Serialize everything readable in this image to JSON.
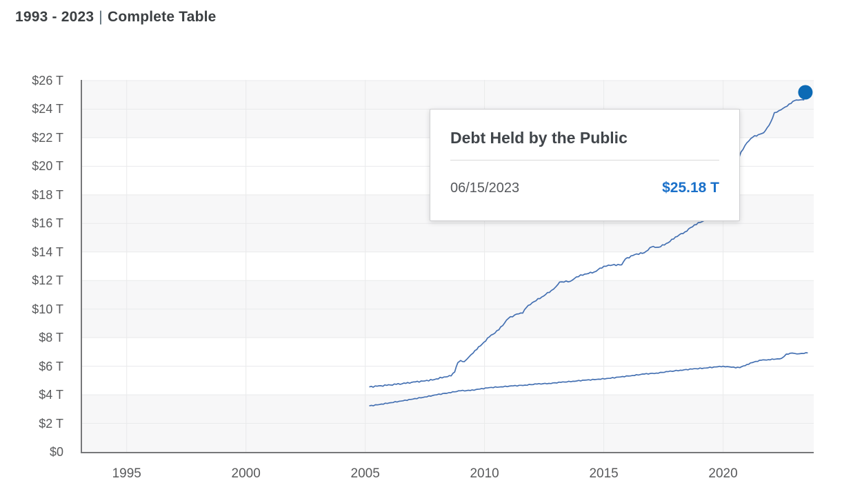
{
  "header": {
    "range": "1993 - 2023",
    "separator": "|",
    "title": "Complete Table"
  },
  "tooltip": {
    "title": "Debt Held by the Public",
    "date": "06/15/2023",
    "value": "$25.18 T",
    "value_color": "#1a70c9"
  },
  "chart_data": {
    "type": "line",
    "title": "1993 - 2023 | Complete Table",
    "xlabel": "",
    "ylabel": "",
    "x_axis": {
      "ticks": [
        1995,
        2000,
        2005,
        2010,
        2015,
        2020
      ],
      "range": [
        1993.1,
        2023.8
      ]
    },
    "y_axis": {
      "tick_labels": [
        "$0",
        "$2 T",
        "$4 T",
        "$6 T",
        "$8 T",
        "$10 T",
        "$12 T",
        "$14 T",
        "$16 T",
        "$18 T",
        "$20 T",
        "$22 T",
        "$24 T",
        "$26 T"
      ],
      "tick_values": [
        0,
        2,
        4,
        6,
        8,
        10,
        12,
        14,
        16,
        18,
        20,
        22,
        24,
        26
      ],
      "range": [
        0,
        26
      ],
      "unit": "$ trillions"
    },
    "grid": true,
    "band_ranges": [
      [
        26,
        22
      ],
      [
        18,
        14
      ],
      [
        12,
        8
      ],
      [
        4,
        0
      ]
    ],
    "legend_position": "none",
    "series": [
      {
        "name": "Debt Held by the Public",
        "points": [
          [
            2005.17,
            4.55
          ],
          [
            2005.5,
            4.6
          ],
          [
            2005.9,
            4.66
          ],
          [
            2006.3,
            4.73
          ],
          [
            2006.7,
            4.8
          ],
          [
            2007.1,
            4.9
          ],
          [
            2007.5,
            4.97
          ],
          [
            2007.9,
            5.07
          ],
          [
            2008.3,
            5.25
          ],
          [
            2008.6,
            5.32
          ],
          [
            2008.75,
            5.6
          ],
          [
            2008.88,
            6.25
          ],
          [
            2009.0,
            6.4
          ],
          [
            2009.15,
            6.32
          ],
          [
            2009.35,
            6.65
          ],
          [
            2009.6,
            7.1
          ],
          [
            2009.9,
            7.55
          ],
          [
            2010.2,
            8.05
          ],
          [
            2010.6,
            8.55
          ],
          [
            2011.0,
            9.35
          ],
          [
            2011.35,
            9.65
          ],
          [
            2011.6,
            9.72
          ],
          [
            2011.75,
            10.1
          ],
          [
            2012.0,
            10.45
          ],
          [
            2012.4,
            10.85
          ],
          [
            2012.8,
            11.3
          ],
          [
            2013.0,
            11.58
          ],
          [
            2013.15,
            11.9
          ],
          [
            2013.6,
            11.95
          ],
          [
            2013.85,
            12.25
          ],
          [
            2014.2,
            12.45
          ],
          [
            2014.6,
            12.6
          ],
          [
            2015.0,
            13.0
          ],
          [
            2015.2,
            13.08
          ],
          [
            2015.75,
            13.1
          ],
          [
            2015.9,
            13.5
          ],
          [
            2016.3,
            13.82
          ],
          [
            2016.7,
            13.95
          ],
          [
            2017.0,
            14.35
          ],
          [
            2017.3,
            14.33
          ],
          [
            2017.7,
            14.65
          ],
          [
            2018.0,
            15.05
          ],
          [
            2018.4,
            15.4
          ],
          [
            2018.8,
            15.9
          ],
          [
            2019.2,
            16.2
          ],
          [
            2019.6,
            16.6
          ],
          [
            2020.0,
            17.2
          ],
          [
            2020.2,
            17.8
          ],
          [
            2020.35,
            19.1
          ],
          [
            2020.55,
            20.1
          ],
          [
            2020.75,
            21.0
          ],
          [
            2021.0,
            21.65
          ],
          [
            2021.25,
            22.05
          ],
          [
            2021.55,
            22.25
          ],
          [
            2021.7,
            22.35
          ],
          [
            2021.85,
            22.7
          ],
          [
            2022.0,
            23.1
          ],
          [
            2022.15,
            23.75
          ],
          [
            2022.35,
            23.9
          ],
          [
            2022.6,
            24.15
          ],
          [
            2022.85,
            24.4
          ],
          [
            2023.0,
            24.6
          ],
          [
            2023.15,
            24.63
          ],
          [
            2023.38,
            24.65
          ],
          [
            2023.44,
            25.1
          ],
          [
            2023.47,
            25.18
          ]
        ]
      },
      {
        "name": "",
        "points": [
          [
            2005.17,
            3.22
          ],
          [
            2005.6,
            3.32
          ],
          [
            2006.0,
            3.43
          ],
          [
            2006.5,
            3.56
          ],
          [
            2007.0,
            3.7
          ],
          [
            2007.5,
            3.85
          ],
          [
            2008.0,
            4.0
          ],
          [
            2008.5,
            4.15
          ],
          [
            2009.0,
            4.28
          ],
          [
            2009.4,
            4.3
          ],
          [
            2009.8,
            4.4
          ],
          [
            2010.2,
            4.5
          ],
          [
            2010.7,
            4.56
          ],
          [
            2011.2,
            4.62
          ],
          [
            2011.7,
            4.68
          ],
          [
            2012.2,
            4.75
          ],
          [
            2012.7,
            4.8
          ],
          [
            2013.2,
            4.87
          ],
          [
            2013.7,
            4.95
          ],
          [
            2014.2,
            5.02
          ],
          [
            2014.7,
            5.08
          ],
          [
            2015.2,
            5.15
          ],
          [
            2015.7,
            5.25
          ],
          [
            2016.2,
            5.35
          ],
          [
            2016.7,
            5.45
          ],
          [
            2017.2,
            5.52
          ],
          [
            2017.7,
            5.62
          ],
          [
            2018.2,
            5.72
          ],
          [
            2018.7,
            5.8
          ],
          [
            2019.2,
            5.87
          ],
          [
            2019.7,
            5.95
          ],
          [
            2020.0,
            6.0
          ],
          [
            2020.35,
            5.93
          ],
          [
            2020.7,
            5.9
          ],
          [
            2021.0,
            6.12
          ],
          [
            2021.3,
            6.3
          ],
          [
            2021.6,
            6.42
          ],
          [
            2021.9,
            6.46
          ],
          [
            2022.2,
            6.5
          ],
          [
            2022.45,
            6.55
          ],
          [
            2022.65,
            6.85
          ],
          [
            2022.9,
            6.92
          ],
          [
            2023.1,
            6.86
          ],
          [
            2023.3,
            6.9
          ],
          [
            2023.55,
            6.93
          ]
        ]
      }
    ],
    "highlight_point": {
      "series": "Debt Held by the Public",
      "x": 2023.45,
      "value_trillions": 25.18,
      "date": "06/15/2023"
    },
    "colors": {
      "line": "#4470b2",
      "marker": "#0c6ab5",
      "value_text": "#1a70c9"
    }
  }
}
